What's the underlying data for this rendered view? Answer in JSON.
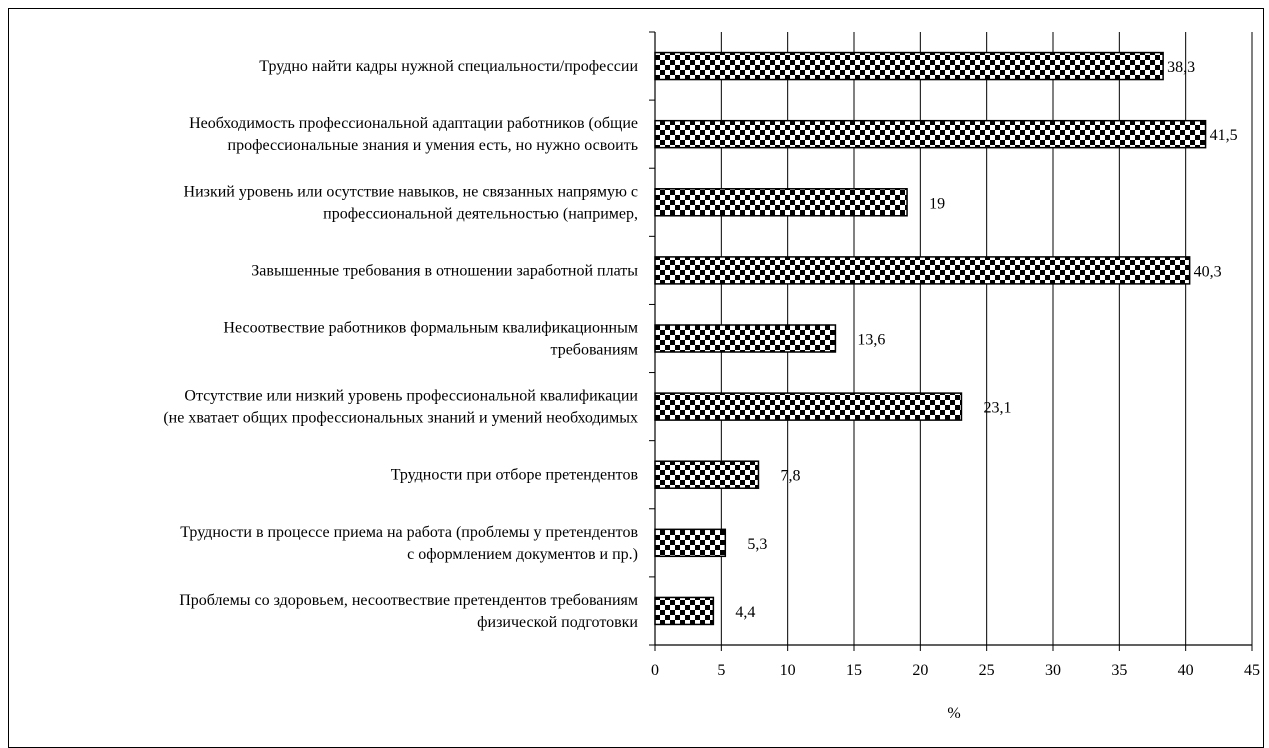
{
  "chart_data": {
    "type": "bar",
    "orientation": "horizontal",
    "categories": [
      [
        "Трудно найти кадры нужной специальности/профессии"
      ],
      [
        "Необходимость профессиональной  адаптации работников (общие",
        "профессиональные знания и умения есть, но нужно освоить"
      ],
      [
        "Низкий уровень или осутствие навыков, не связанных напрямую с",
        "профессиональной деятельностью (например,"
      ],
      [
        "Завышенные требования в отношении заработной платы"
      ],
      [
        "Несоотвествие работников формальным квалификационным",
        "требованиям"
      ],
      [
        "Отсутствие или низкий уровень профессиональной квалификации",
        "(не хватает общих профессиональных знаний и умений необходимых"
      ],
      [
        "Трудности при отборе претендентов"
      ],
      [
        "Трудности в процессе приема на работа (проблемы у претендентов",
        "с оформлением документов и пр.)"
      ],
      [
        "Проблемы со здоровьем, несоотвествие претендентов требованиям",
        "физической подготовки"
      ]
    ],
    "values": [
      38.3,
      41.5,
      19,
      40.3,
      13.6,
      23.1,
      7.8,
      5.3,
      4.4
    ],
    "value_labels": [
      "38,3",
      "41,5",
      "19",
      "40,3",
      "13,6",
      "23,1",
      "7,8",
      "5,3",
      "4,4"
    ],
    "xlabel": "%",
    "xlim": [
      0,
      45
    ],
    "xticks": [
      "0",
      "5",
      "10",
      "15",
      "20",
      "25",
      "30",
      "35",
      "40",
      "45"
    ],
    "grid": "vertical major lines",
    "bar_fill": "black-and-white checkerboard",
    "bar_color": "#000000"
  }
}
